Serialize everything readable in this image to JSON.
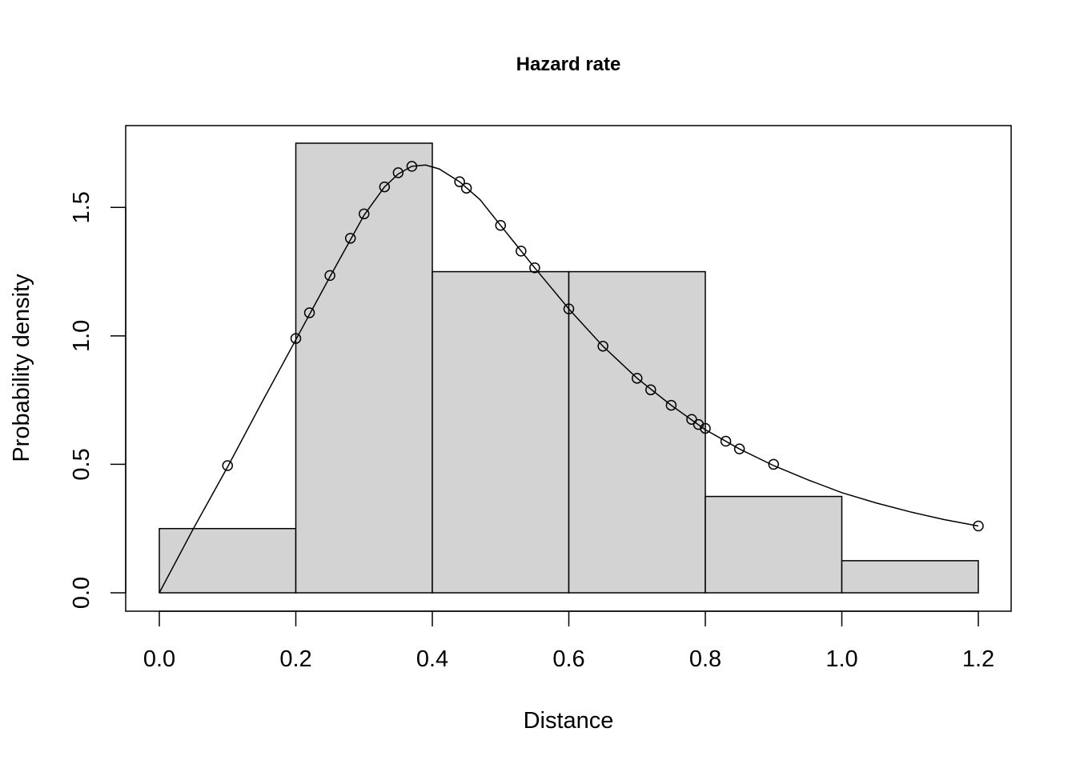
{
  "chart_data": {
    "type": "histogram",
    "title": "Hazard rate",
    "xlabel": "Distance",
    "ylabel": "Probability density",
    "xlim": [
      0.0,
      1.2
    ],
    "ylim": [
      0.0,
      1.75
    ],
    "x_ticks": [
      "0.0",
      "0.2",
      "0.4",
      "0.6",
      "0.8",
      "1.0",
      "1.2"
    ],
    "y_ticks": [
      "0.0",
      "0.5",
      "1.0",
      "1.5"
    ],
    "bins": [
      {
        "start": 0.0,
        "end": 0.2,
        "density": 0.25
      },
      {
        "start": 0.2,
        "end": 0.4,
        "density": 1.75
      },
      {
        "start": 0.4,
        "end": 0.6,
        "density": 1.25
      },
      {
        "start": 0.6,
        "end": 0.8,
        "density": 1.25
      },
      {
        "start": 0.8,
        "end": 1.0,
        "density": 0.375
      },
      {
        "start": 1.0,
        "end": 1.2,
        "density": 0.125
      }
    ],
    "fitted_curve": [
      [
        0.0,
        0.0
      ],
      [
        0.05,
        0.25
      ],
      [
        0.1,
        0.49
      ],
      [
        0.15,
        0.74
      ],
      [
        0.2,
        0.985
      ],
      [
        0.25,
        1.23
      ],
      [
        0.3,
        1.47
      ],
      [
        0.33,
        1.58
      ],
      [
        0.35,
        1.63
      ],
      [
        0.37,
        1.66
      ],
      [
        0.39,
        1.665
      ],
      [
        0.41,
        1.65
      ],
      [
        0.44,
        1.6
      ],
      [
        0.47,
        1.53
      ],
      [
        0.5,
        1.43
      ],
      [
        0.55,
        1.265
      ],
      [
        0.6,
        1.105
      ],
      [
        0.65,
        0.96
      ],
      [
        0.7,
        0.835
      ],
      [
        0.75,
        0.73
      ],
      [
        0.8,
        0.635
      ],
      [
        0.85,
        0.56
      ],
      [
        0.9,
        0.495
      ],
      [
        0.95,
        0.44
      ],
      [
        1.0,
        0.39
      ],
      [
        1.05,
        0.35
      ],
      [
        1.1,
        0.315
      ],
      [
        1.15,
        0.285
      ],
      [
        1.2,
        0.26
      ]
    ],
    "points": [
      {
        "x": 0.1,
        "y": 0.495
      },
      {
        "x": 0.2,
        "y": 0.99
      },
      {
        "x": 0.22,
        "y": 1.09
      },
      {
        "x": 0.25,
        "y": 1.235
      },
      {
        "x": 0.28,
        "y": 1.38
      },
      {
        "x": 0.3,
        "y": 1.475
      },
      {
        "x": 0.33,
        "y": 1.58
      },
      {
        "x": 0.35,
        "y": 1.635
      },
      {
        "x": 0.37,
        "y": 1.66
      },
      {
        "x": 0.44,
        "y": 1.6
      },
      {
        "x": 0.45,
        "y": 1.575
      },
      {
        "x": 0.5,
        "y": 1.43
      },
      {
        "x": 0.53,
        "y": 1.33
      },
      {
        "x": 0.55,
        "y": 1.265
      },
      {
        "x": 0.6,
        "y": 1.105
      },
      {
        "x": 0.65,
        "y": 0.96
      },
      {
        "x": 0.7,
        "y": 0.835
      },
      {
        "x": 0.72,
        "y": 0.79
      },
      {
        "x": 0.75,
        "y": 0.73
      },
      {
        "x": 0.78,
        "y": 0.675
      },
      {
        "x": 0.79,
        "y": 0.655
      },
      {
        "x": 0.8,
        "y": 0.64
      },
      {
        "x": 0.83,
        "y": 0.59
      },
      {
        "x": 0.85,
        "y": 0.56
      },
      {
        "x": 0.9,
        "y": 0.5
      },
      {
        "x": 1.2,
        "y": 0.26
      }
    ],
    "bar_fill": "#d3d3d3",
    "line_color": "#000000",
    "grid": false
  }
}
